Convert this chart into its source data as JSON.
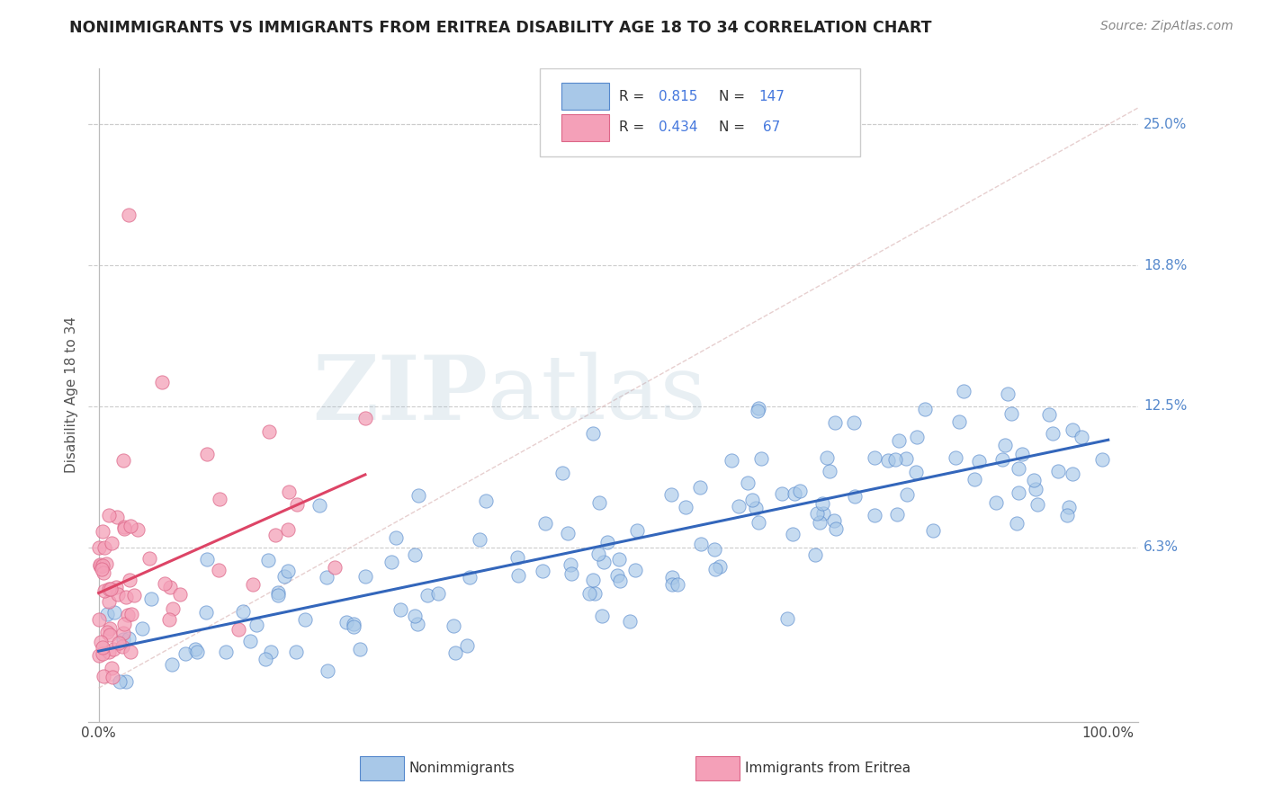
{
  "title": "NONIMMIGRANTS VS IMMIGRANTS FROM ERITREA DISABILITY AGE 18 TO 34 CORRELATION CHART",
  "source_text": "Source: ZipAtlas.com",
  "ylabel": "Disability Age 18 to 34",
  "blue_R": 0.815,
  "blue_N": 147,
  "pink_R": 0.434,
  "pink_N": 67,
  "blue_color": "#a8c8e8",
  "pink_color": "#f4a0b8",
  "blue_edge": "#5588cc",
  "pink_edge": "#dd6688",
  "trend_blue": "#3366bb",
  "trend_pink": "#dd4466",
  "diag_color": "#ddaaaa",
  "legend_label_blue": "Nonimmigrants",
  "legend_label_pink": "Immigrants from Eritrea",
  "watermark_zip": "ZIP",
  "watermark_atlas": "atlas",
  "background_color": "#ffffff",
  "grid_color": "#cccccc",
  "ytick_vals": [
    6.25,
    12.5,
    18.75,
    25.0
  ],
  "ytick_labels": [
    "6.3%",
    "12.5%",
    "18.8%",
    "25.0%"
  ]
}
